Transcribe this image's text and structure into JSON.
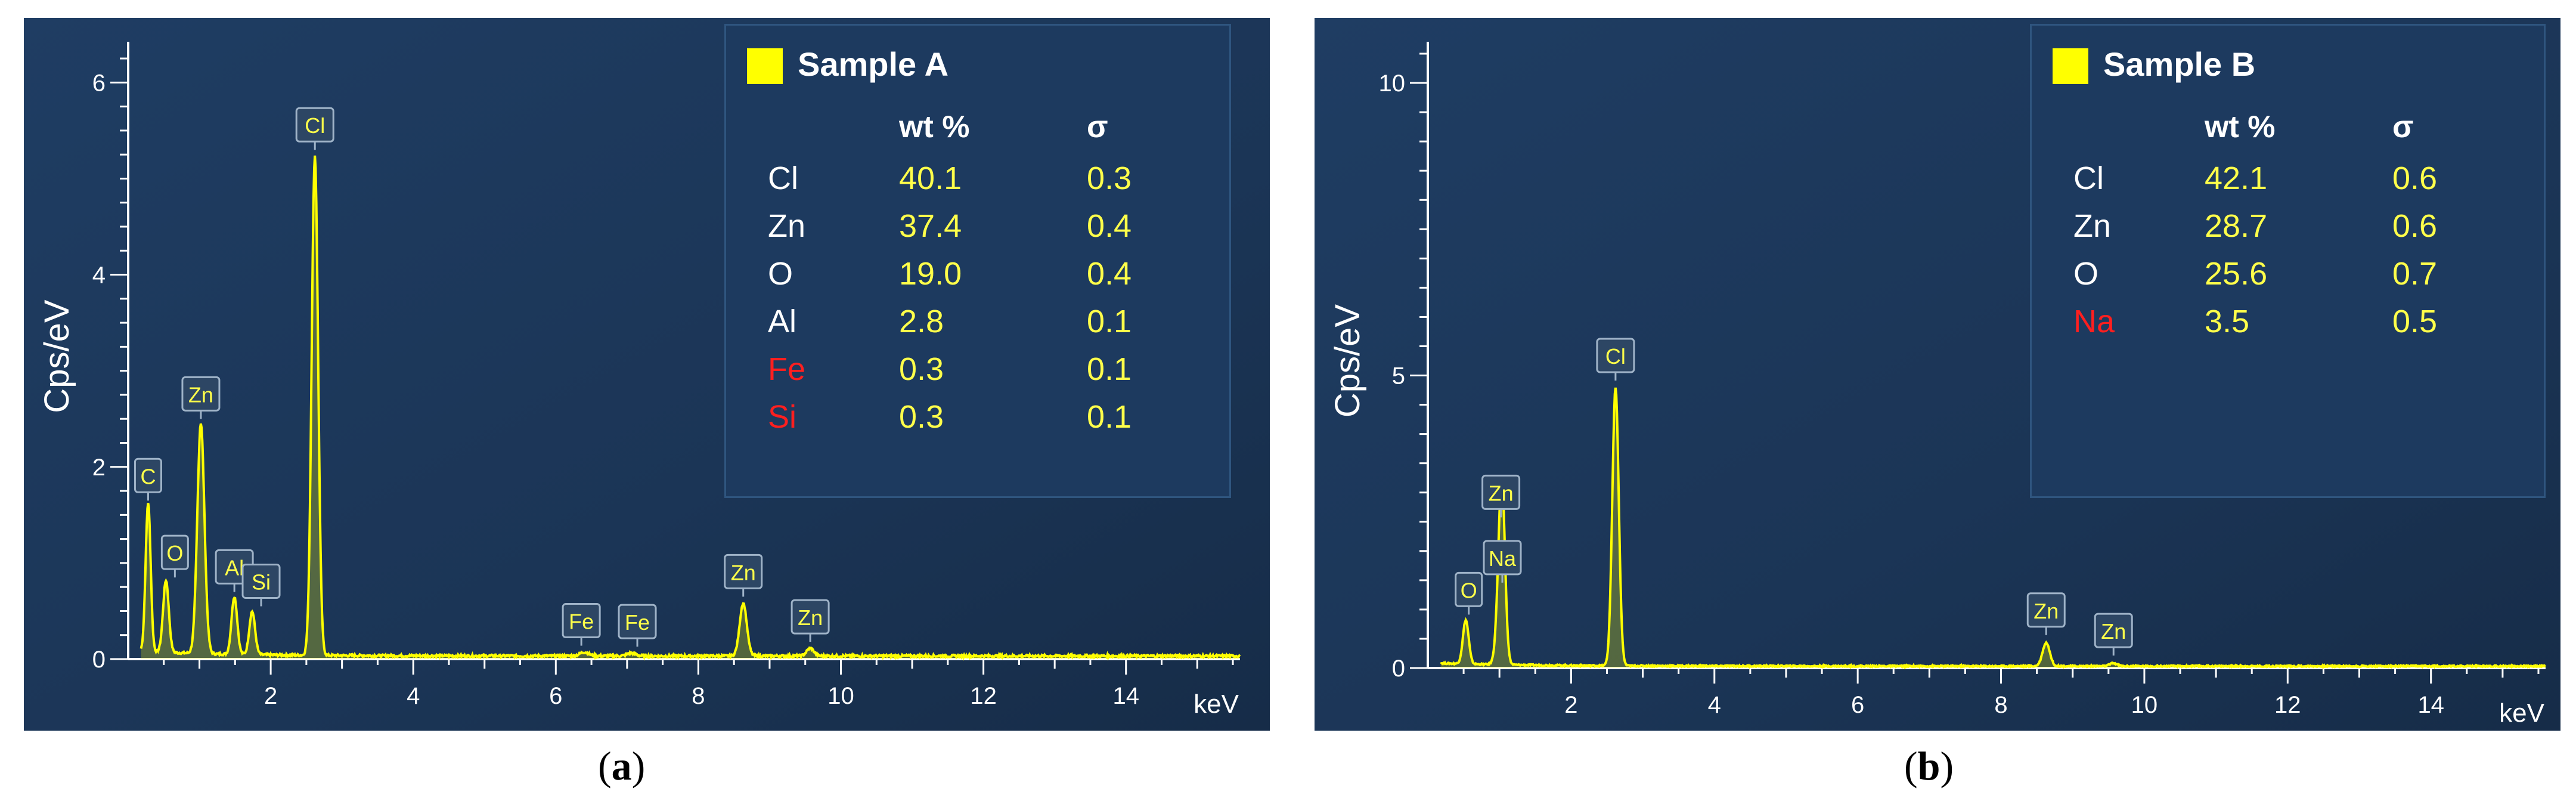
{
  "chart_data": [
    {
      "type": "line",
      "ylabel": "Cps/eV",
      "xlabel": "keV",
      "xlim": [
        0,
        15.6
      ],
      "ylim": [
        0,
        6.3
      ],
      "xticks": [
        2,
        4,
        6,
        8,
        10,
        12,
        14
      ],
      "yticks": [
        0,
        2,
        4,
        6
      ],
      "legend": "Sample A",
      "table": {
        "headers": [
          "",
          "wt %",
          "σ"
        ],
        "rows": [
          {
            "element": "Cl",
            "wt": "40.1",
            "sigma": "0.3",
            "color": "#ffffff"
          },
          {
            "element": "Zn",
            "wt": "37.4",
            "sigma": "0.4",
            "color": "#ffffff"
          },
          {
            "element": "O",
            "wt": "19.0",
            "sigma": "0.4",
            "color": "#ffffff"
          },
          {
            "element": "Al",
            "wt": "2.8",
            "sigma": "0.1",
            "color": "#ffffff"
          },
          {
            "element": "Fe",
            "wt": "0.3",
            "sigma": "0.1",
            "color": "#ff1f1f"
          },
          {
            "element": "Si",
            "wt": "0.3",
            "sigma": "0.1",
            "color": "#ff1f1f"
          }
        ]
      },
      "peaks": [
        {
          "label": "C",
          "x": 0.28,
          "y": 1.55
        },
        {
          "label": "O",
          "x": 0.53,
          "y": 0.75
        },
        {
          "label": "Zn",
          "x": 1.02,
          "y": 2.4
        },
        {
          "label": "Al",
          "x": 1.49,
          "y": 0.6
        },
        {
          "label": "Si",
          "x": 1.74,
          "y": 0.45
        },
        {
          "label": "Cl",
          "x": 2.62,
          "y": 5.2
        },
        {
          "label": "Fe",
          "x": 6.4,
          "y": 0.04
        },
        {
          "label": "Fe",
          "x": 7.06,
          "y": 0.03
        },
        {
          "label": "Zn",
          "x": 8.63,
          "y": 0.55
        },
        {
          "label": "Zn",
          "x": 9.57,
          "y": 0.08
        }
      ],
      "caption": "a",
      "colors": {
        "background": "#1b3556",
        "trace": "#ffff00"
      }
    },
    {
      "type": "line",
      "ylabel": "Cps/eV",
      "xlabel": "keV",
      "xlim": [
        0,
        15.6
      ],
      "ylim": [
        0,
        10.5
      ],
      "xticks": [
        2,
        4,
        6,
        8,
        10,
        12,
        14
      ],
      "yticks": [
        0,
        5,
        10
      ],
      "legend": "Sample B",
      "table": {
        "headers": [
          "",
          "wt %",
          "σ"
        ],
        "rows": [
          {
            "element": "Cl",
            "wt": "42.1",
            "sigma": "0.6",
            "color": "#ffffff"
          },
          {
            "element": "Zn",
            "wt": "28.7",
            "sigma": "0.6",
            "color": "#ffffff"
          },
          {
            "element": "O",
            "wt": "25.6",
            "sigma": "0.7",
            "color": "#ffffff"
          },
          {
            "element": "Na",
            "wt": "3.5",
            "sigma": "0.5",
            "color": "#ff1f1f"
          }
        ]
      },
      "peaks": [
        {
          "label": "O",
          "x": 0.53,
          "y": 0.75
        },
        {
          "label": "Zn",
          "x": 1.02,
          "y": 1.8
        },
        {
          "label": "Na",
          "x": 1.04,
          "y": 1.5
        },
        {
          "label": "Cl",
          "x": 2.62,
          "y": 4.75
        },
        {
          "label": "Zn",
          "x": 8.63,
          "y": 0.4
        },
        {
          "label": "Zn",
          "x": 9.57,
          "y": 0.05
        }
      ],
      "caption": "b",
      "colors": {
        "background": "#1b3556",
        "trace": "#ffff00"
      }
    }
  ]
}
